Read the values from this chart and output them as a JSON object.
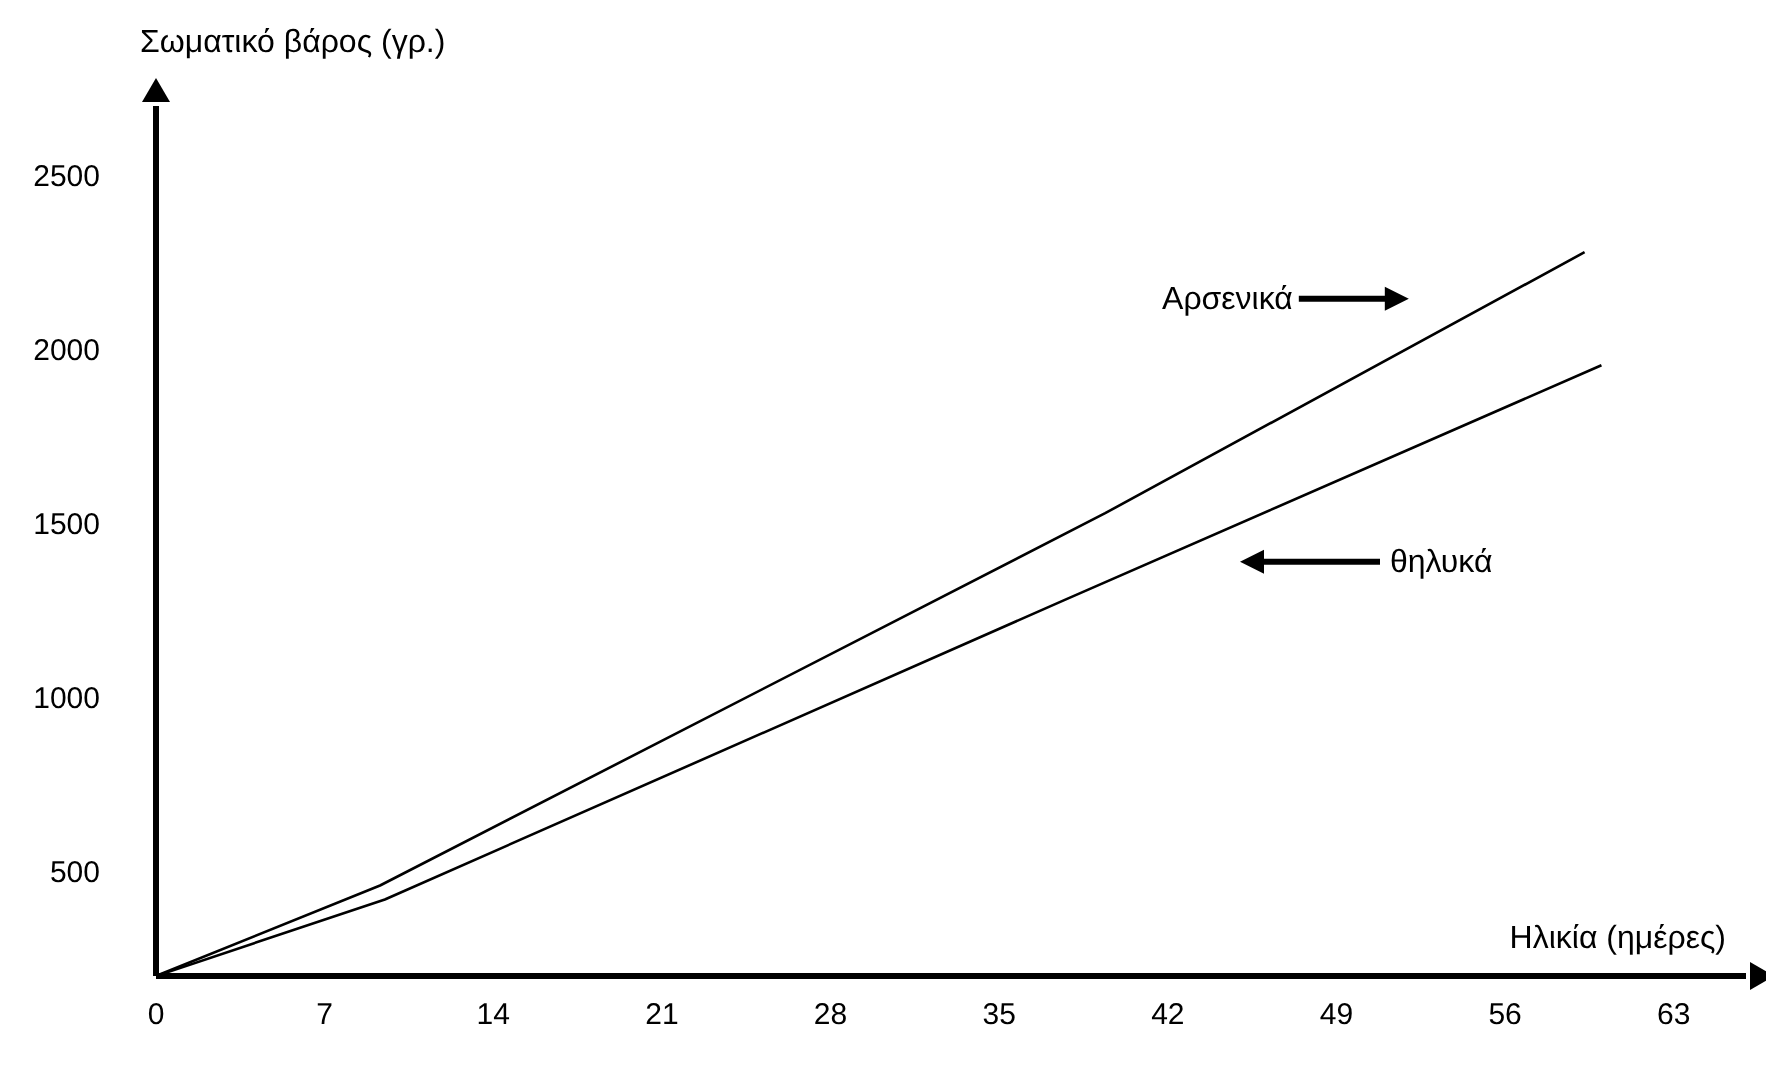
{
  "chart_data": {
    "type": "line",
    "ylabel": "Σωματικό βάρος (γρ.)",
    "xlabel": "Ηλικία (ημέρες)",
    "xlim": [
      0,
      66
    ],
    "xticks": [
      0,
      7,
      14,
      21,
      28,
      35,
      42,
      49,
      56,
      63
    ],
    "ylim": [
      200,
      2700
    ],
    "yticks": [
      500,
      1000,
      1500,
      2000,
      2500
    ],
    "marker": "none",
    "line_style": "solid",
    "series": [
      {
        "name": "Αρσενικά",
        "color": "#000000",
        "x": [
          0,
          9.3,
          39.4,
          59.3
        ],
        "values": [
          200,
          460,
          1530,
          2280
        ]
      },
      {
        "name": "θηλυκά",
        "color": "#000000",
        "x": [
          0,
          9.5,
          37.7,
          60
        ],
        "values": [
          200,
          420,
          1280,
          1955
        ]
      }
    ]
  }
}
